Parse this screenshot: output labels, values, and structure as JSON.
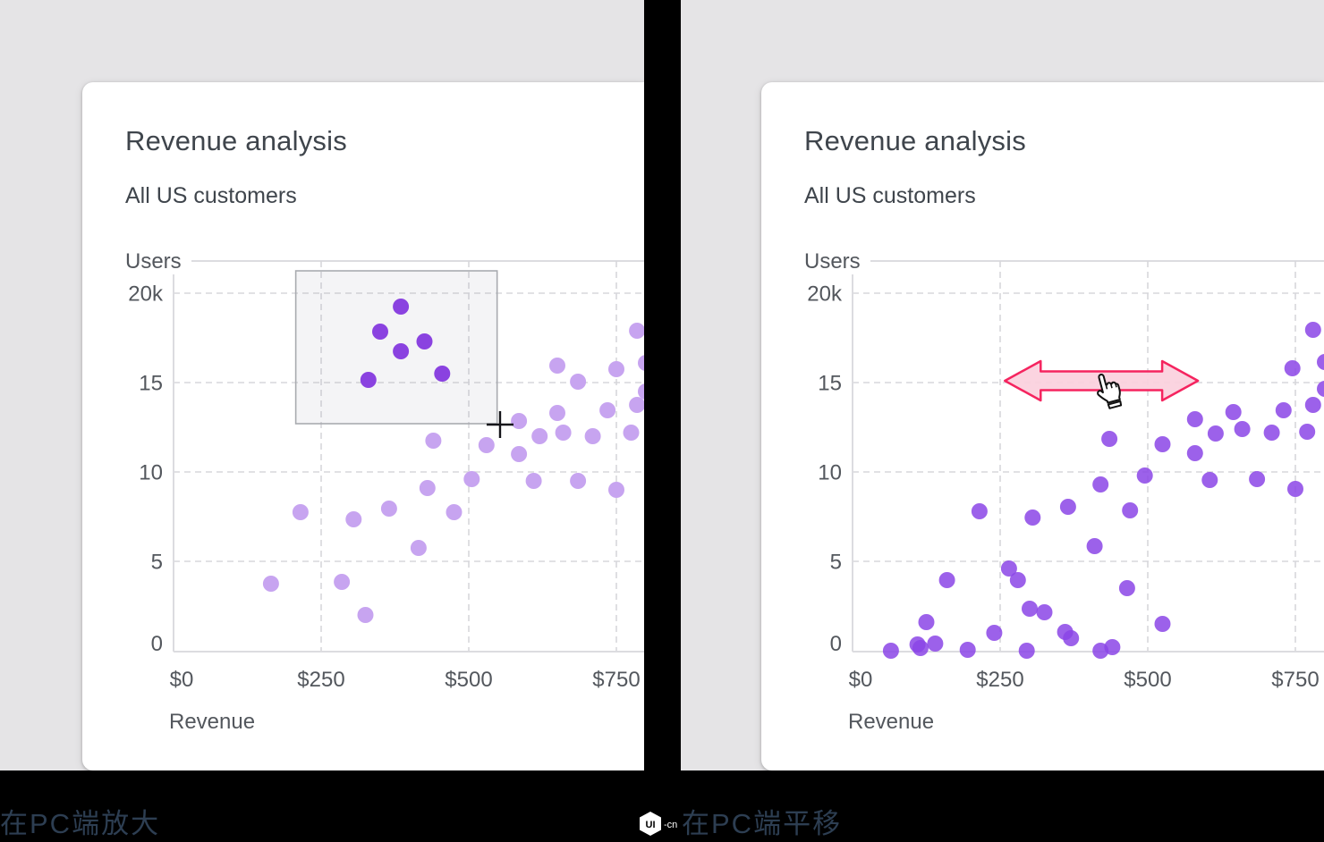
{
  "page": {
    "background": "#000000",
    "panel_background": "#e5e4e6",
    "card_background": "#ffffff"
  },
  "cards": [
    {
      "title": "Revenue analysis",
      "subtitle": "All US customers"
    },
    {
      "title": "Revenue analysis",
      "subtitle": "All US customers"
    }
  ],
  "captions": {
    "left": "在PC端放大",
    "right": "在PC端平移",
    "logo_text": "UI",
    "logo_suffix": "-cn"
  },
  "chart_data": [
    {
      "type": "scatter",
      "title": "Revenue analysis",
      "subtitle": "All US customers",
      "xlabel": "Revenue",
      "ylabel": "Users",
      "x_ticks": {
        "labels": [
          "$0",
          "$250",
          "$500",
          "$750"
        ],
        "values": [
          0,
          250,
          500,
          750
        ]
      },
      "y_ticks": {
        "labels": [
          "0",
          "5",
          "10",
          "15",
          "20k"
        ],
        "values": [
          0,
          5,
          10,
          15,
          20
        ]
      },
      "xlim": [
        0,
        795
      ],
      "ylim": [
        0,
        21.8
      ],
      "grid": true,
      "units": {
        "x": "USD revenue",
        "y": "users, thousands"
      },
      "series": [
        {
          "name": "scatter-point",
          "color": "#c7a4f0",
          "opacity": 1,
          "points": [
            [
              165,
              3.75
            ],
            [
              285,
              3.85
            ],
            [
              325,
              2.0
            ],
            [
              215,
              7.75
            ],
            [
              305,
              7.35
            ],
            [
              365,
              7.95
            ],
            [
              415,
              5.75
            ],
            [
              430,
              9.1
            ],
            [
              475,
              7.75
            ],
            [
              440,
              11.75
            ],
            [
              505,
              9.6
            ],
            [
              530,
              11.5
            ],
            [
              585,
              12.85
            ],
            [
              585,
              11.0
            ],
            [
              610,
              9.5
            ],
            [
              620,
              12.0
            ],
            [
              650,
              15.95
            ],
            [
              650,
              13.3
            ],
            [
              660,
              12.2
            ],
            [
              685,
              15.05
            ],
            [
              685,
              9.5
            ],
            [
              710,
              12.0
            ],
            [
              735,
              13.45
            ],
            [
              750,
              15.75
            ],
            [
              750,
              9.0
            ],
            [
              775,
              12.2
            ],
            [
              785,
              17.9
            ],
            [
              785,
              13.75
            ],
            [
              800,
              16.1
            ],
            [
              800,
              14.5
            ]
          ]
        },
        {
          "name": "selected-scatter-point",
          "color": "#8a42e0",
          "opacity": 1,
          "points": [
            [
              385,
              19.25
            ],
            [
              350,
              17.85
            ],
            [
              425,
              17.3
            ],
            [
              385,
              16.75
            ],
            [
              330,
              15.15
            ],
            [
              455,
              15.5
            ]
          ]
        }
      ],
      "annotations": {
        "selection_box": {
          "x1": 207,
          "x2": 548,
          "y1": 12.7,
          "y2": 21.25,
          "fill": "rgba(150,150,165,0.10)",
          "stroke": "#a9abb0"
        },
        "crosshair_cursor": {
          "x": 553,
          "y": 12.65,
          "color": "#15151a"
        }
      }
    },
    {
      "type": "scatter",
      "title": "Revenue analysis",
      "subtitle": "All US customers",
      "xlabel": "Revenue",
      "ylabel": "Users",
      "x_ticks": {
        "labels": [
          "$0",
          "$250",
          "$500",
          "$750"
        ],
        "values": [
          0,
          250,
          500,
          750
        ]
      },
      "y_ticks": {
        "labels": [
          "0",
          "5",
          "10",
          "15",
          "20k"
        ],
        "values": [
          0,
          5,
          10,
          15,
          20
        ]
      },
      "xlim": [
        0,
        798
      ],
      "ylim": [
        0,
        21.8
      ],
      "grid": true,
      "units": {
        "x": "USD revenue",
        "y": "users, thousands"
      },
      "series": [
        {
          "name": "scatter-point",
          "color": "#8b45e6",
          "opacity": 0.85,
          "points": [
            [
              780,
              17.95
            ],
            [
              745,
              15.8
            ],
            [
              800,
              16.15
            ],
            [
              800,
              14.65
            ],
            [
              780,
              13.75
            ],
            [
              730,
              13.45
            ],
            [
              645,
              13.35
            ],
            [
              580,
              12.95
            ],
            [
              615,
              12.15
            ],
            [
              660,
              12.4
            ],
            [
              710,
              12.2
            ],
            [
              770,
              12.25
            ],
            [
              580,
              11.05
            ],
            [
              605,
              9.55
            ],
            [
              685,
              9.6
            ],
            [
              750,
              9.05
            ],
            [
              435,
              11.85
            ],
            [
              525,
              11.55
            ],
            [
              495,
              9.8
            ],
            [
              420,
              9.3
            ],
            [
              215,
              7.8
            ],
            [
              305,
              7.45
            ],
            [
              365,
              8.05
            ],
            [
              470,
              7.85
            ],
            [
              410,
              5.85
            ],
            [
              160,
              3.95
            ],
            [
              265,
              4.6
            ],
            [
              280,
              3.95
            ],
            [
              465,
              3.5
            ],
            [
              300,
              2.35
            ],
            [
              325,
              2.15
            ],
            [
              125,
              1.6
            ],
            [
              240,
              1.0
            ],
            [
              360,
              1.05
            ],
            [
              370,
              0.7
            ],
            [
              525,
              1.5
            ],
            [
              65,
              0.0
            ],
            [
              110,
              0.35
            ],
            [
              115,
              0.15
            ],
            [
              140,
              0.4
            ],
            [
              195,
              0.05
            ],
            [
              295,
              0.0
            ],
            [
              420,
              0.0
            ],
            [
              440,
              0.2
            ]
          ]
        }
      ],
      "annotations": {
        "pan_arrow": {
          "x1": 258,
          "x2": 585,
          "y": 15.1,
          "fill": "#fbd0dd",
          "stroke": "#f5245f"
        },
        "hand_cursor": {
          "x": 421,
          "y": 15.45
        }
      }
    }
  ]
}
